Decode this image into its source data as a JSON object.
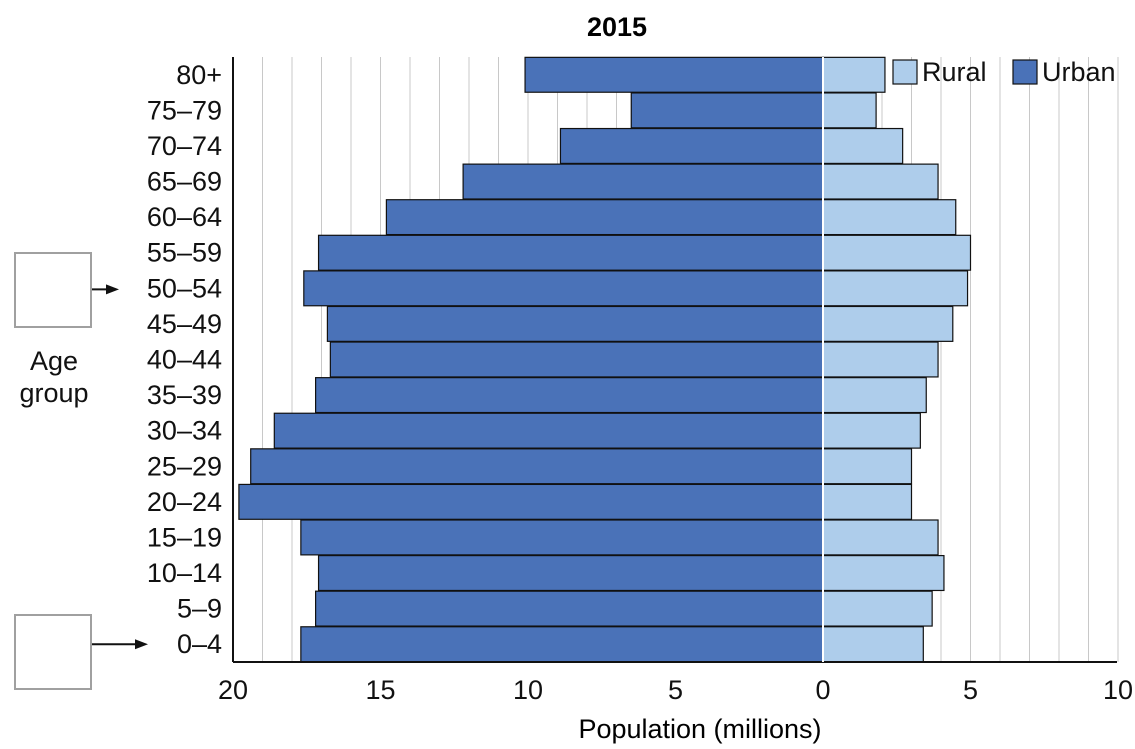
{
  "chart_data": {
    "type": "bar",
    "orientation": "horizontal",
    "layout": "population-pyramid",
    "title": "2015",
    "xlabel": "Population (millions)",
    "ylabel": "Age group",
    "ylabel_lines": [
      "Age",
      "group"
    ],
    "categories": [
      "80+",
      "75–79",
      "70–74",
      "65–69",
      "60–64",
      "55–59",
      "50–54",
      "45–49",
      "40–44",
      "35–39",
      "30–34",
      "25–29",
      "20–24",
      "15–19",
      "10–14",
      "5–9",
      "0–4"
    ],
    "series": [
      {
        "name": "Urban",
        "side": "left",
        "color": "#4a72b8",
        "values": [
          10.1,
          6.5,
          8.9,
          12.2,
          14.8,
          17.1,
          17.6,
          16.8,
          16.7,
          17.2,
          18.6,
          19.4,
          19.8,
          17.7,
          17.1,
          17.2,
          17.7
        ]
      },
      {
        "name": "Rural",
        "side": "right",
        "color": "#aecdeb",
        "values": [
          2.1,
          1.8,
          2.7,
          3.9,
          4.5,
          5.0,
          4.9,
          4.4,
          3.9,
          3.5,
          3.3,
          3.0,
          3.0,
          3.9,
          4.1,
          3.7,
          3.4
        ]
      }
    ],
    "xlim_left": [
      20,
      0
    ],
    "xlim_right": [
      0,
      10
    ],
    "xticks": [
      "20",
      "15",
      "10",
      "5",
      "0",
      "5",
      "10"
    ],
    "grid": "vertical lines every 1 million",
    "legend": {
      "position": "top-right",
      "entries": [
        "Rural",
        "Urban"
      ]
    },
    "annotations": [
      {
        "type": "empty-box-with-arrow",
        "target": "50–54"
      },
      {
        "type": "empty-box-with-arrow",
        "target": "0–4"
      }
    ]
  }
}
